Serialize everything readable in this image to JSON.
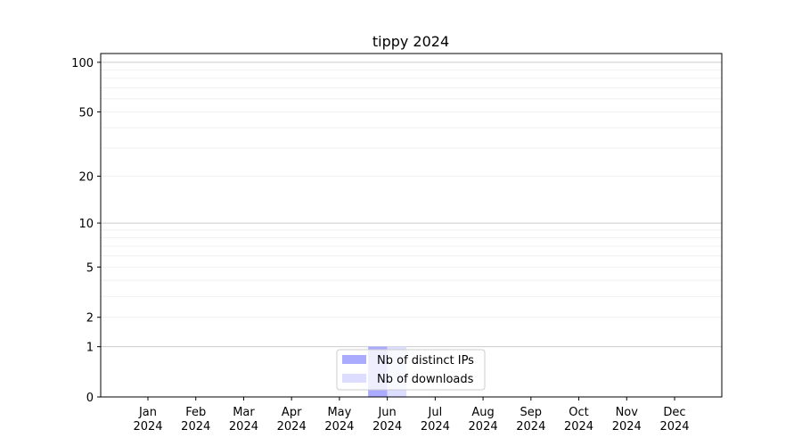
{
  "chart_data": {
    "type": "bar",
    "title": "tippy 2024",
    "xlabel": "",
    "ylabel": "",
    "y_scale": "log(1+y)",
    "ylim": [
      0,
      113
    ],
    "yticks": [
      0,
      1,
      2,
      5,
      10,
      20,
      50,
      100
    ],
    "ytick_labels": [
      "0",
      "1",
      "2",
      "5",
      "10",
      "20",
      "50",
      "100"
    ],
    "grid": true,
    "legend_position": "bottom-center",
    "categories": [
      "Jan\n2024",
      "Feb\n2024",
      "Mar\n2024",
      "Apr\n2024",
      "May\n2024",
      "Jun\n2024",
      "Jul\n2024",
      "Aug\n2024",
      "Sep\n2024",
      "Oct\n2024",
      "Nov\n2024",
      "Dec\n2024"
    ],
    "series": [
      {
        "name": "Nb of distinct IPs",
        "color": "#aaaaff",
        "values": [
          0,
          0,
          0,
          0,
          0,
          1,
          0,
          0,
          0,
          0,
          0,
          0
        ]
      },
      {
        "name": "Nb of downloads",
        "color": "#ddddff",
        "values": [
          0,
          0,
          0,
          0,
          0,
          1,
          0,
          0,
          0,
          0,
          0,
          0
        ]
      }
    ]
  }
}
